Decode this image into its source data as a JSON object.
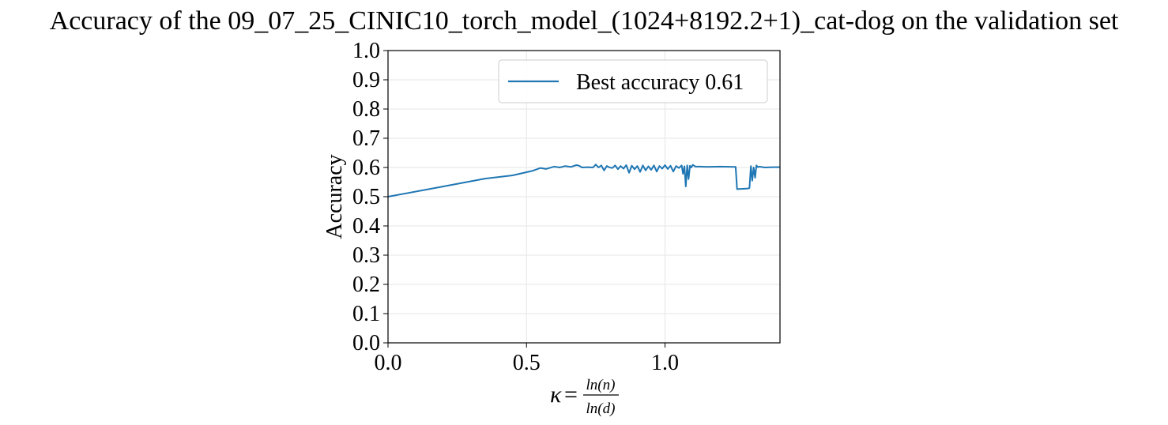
{
  "chart_data": {
    "type": "line",
    "title": "Accuracy of the 09_07_25_CINIC10_torch_model_(1024+8192.2+1)_cat-dog on the validation set",
    "ylabel": "Accuracy",
    "xlabel": {
      "prefix": "κ",
      "equals": "=",
      "numerator": "ln(n)",
      "denominator": "ln(d)"
    },
    "xlim": [
      0.0,
      1.415
    ],
    "ylim": [
      0.0,
      1.0
    ],
    "x_ticks": [
      0.0,
      0.5,
      1.0
    ],
    "x_tick_labels": [
      "0.0",
      "0.5",
      "1.0"
    ],
    "y_ticks": [
      0.0,
      0.1,
      0.2,
      0.3,
      0.4,
      0.5,
      0.6,
      0.7,
      0.8,
      0.9,
      1.0
    ],
    "y_tick_labels": [
      "0.0",
      "0.1",
      "0.2",
      "0.3",
      "0.4",
      "0.5",
      "0.6",
      "0.7",
      "0.8",
      "0.9",
      "1.0"
    ],
    "grid": true,
    "legend_position": "top-right",
    "series": [
      {
        "name": "Best accuracy 0.61",
        "color": "#1f77b4",
        "x": [
          0.0,
          0.2,
          0.35,
          0.45,
          0.52,
          0.55,
          0.57,
          0.6,
          0.62,
          0.64,
          0.66,
          0.68,
          0.69,
          0.7,
          0.72,
          0.74,
          0.75,
          0.76,
          0.77,
          0.78,
          0.79,
          0.8,
          0.81,
          0.82,
          0.83,
          0.84,
          0.85,
          0.86,
          0.87,
          0.88,
          0.89,
          0.9,
          0.91,
          0.92,
          0.93,
          0.94,
          0.95,
          0.96,
          0.97,
          0.98,
          0.99,
          1.0,
          1.01,
          1.02,
          1.03,
          1.04,
          1.05,
          1.06,
          1.065,
          1.07,
          1.075,
          1.08,
          1.085,
          1.09,
          1.095,
          1.1,
          1.11,
          1.13,
          1.15,
          1.2,
          1.25,
          1.255,
          1.26,
          1.3,
          1.305,
          1.31,
          1.315,
          1.32,
          1.325,
          1.33,
          1.335,
          1.34,
          1.36,
          1.39,
          1.415
        ],
        "y": [
          0.5,
          0.535,
          0.562,
          0.573,
          0.588,
          0.598,
          0.595,
          0.603,
          0.6,
          0.605,
          0.602,
          0.608,
          0.606,
          0.6,
          0.601,
          0.6,
          0.61,
          0.6,
          0.607,
          0.59,
          0.605,
          0.6,
          0.598,
          0.607,
          0.594,
          0.605,
          0.596,
          0.608,
          0.582,
          0.606,
          0.594,
          0.605,
          0.585,
          0.607,
          0.59,
          0.604,
          0.592,
          0.607,
          0.586,
          0.605,
          0.596,
          0.608,
          0.595,
          0.606,
          0.586,
          0.605,
          0.598,
          0.607,
          0.578,
          0.604,
          0.535,
          0.607,
          0.56,
          0.606,
          0.6,
          0.609,
          0.603,
          0.603,
          0.602,
          0.603,
          0.602,
          0.602,
          0.526,
          0.528,
          0.53,
          0.605,
          0.555,
          0.6,
          0.565,
          0.607,
          0.601,
          0.603,
          0.6,
          0.601,
          0.601
        ]
      }
    ]
  }
}
